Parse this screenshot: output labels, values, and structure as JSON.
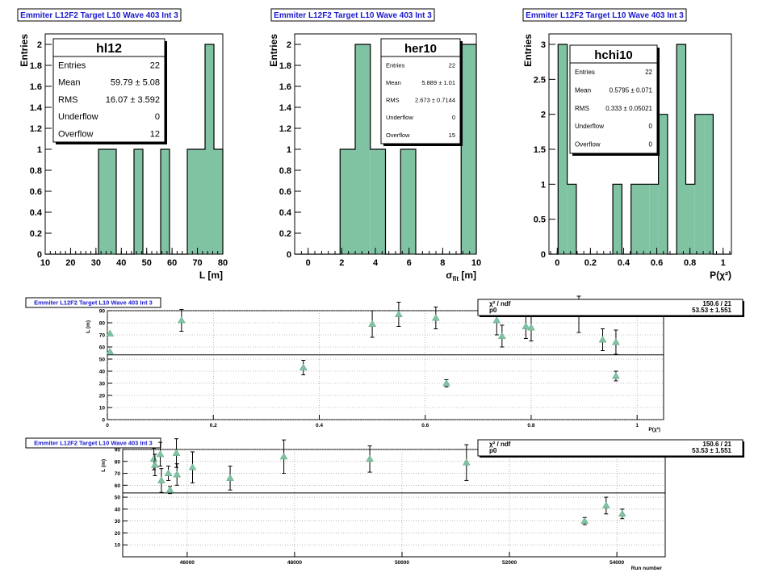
{
  "colors": {
    "fill": "#7fc3a3",
    "stroke": "#000000",
    "title": "#1a1ad0",
    "grid": "#888888",
    "marker": "#7fc3a3"
  },
  "chart_data": [
    {
      "type": "bar",
      "id": "h1",
      "title": "Emmiter L12F2 Target L10 Wave 403 Int 3",
      "xlabel": "L [m]",
      "ylabel": "Entries",
      "xlim": [
        10,
        80
      ],
      "ylim": [
        0,
        2.1
      ],
      "xticks": [
        "10",
        "20",
        "30",
        "40",
        "50",
        "60",
        "70",
        "80"
      ],
      "yticks": [
        "0",
        "0.2",
        "0.4",
        "0.6",
        "0.8",
        "1",
        "1.2",
        "1.4",
        "1.6",
        "1.8",
        "2"
      ],
      "bin_edges": [
        10,
        13.5,
        17,
        20.5,
        24,
        27.5,
        31,
        34.5,
        38,
        41.5,
        45,
        48.5,
        52,
        55.5,
        59,
        62.5,
        66,
        69.5,
        73,
        76.5,
        80
      ],
      "values": [
        0,
        0,
        0,
        0,
        0,
        0,
        1,
        1,
        0,
        0,
        1,
        0,
        0,
        1,
        0,
        0,
        1,
        1,
        2,
        1
      ],
      "stats": {
        "name": "hl12",
        "rows": [
          {
            "label": "Entries",
            "value": "22"
          },
          {
            "label": "Mean",
            "value": "59.79 ±  5.08"
          },
          {
            "label": "RMS",
            "value": "16.07 ±  3.592"
          },
          {
            "label": "Underflow",
            "value": "0"
          },
          {
            "label": "Overflow",
            "value": "12"
          }
        ]
      }
    },
    {
      "type": "bar",
      "id": "h2",
      "title": "Emmiter L12F2 Target L10 Wave 403 Int 3",
      "xlabel": "σfit [m]",
      "ylabel": "Entries",
      "xlim": [
        -0.8,
        10
      ],
      "ylim": [
        0,
        2.1
      ],
      "xticks": [
        "0",
        "2",
        "4",
        "6",
        "8",
        "10"
      ],
      "yticks": [
        "0",
        "0.2",
        "0.4",
        "0.6",
        "0.8",
        "1",
        "1.2",
        "1.4",
        "1.6",
        "1.8",
        "2"
      ],
      "bin_edges": [
        -0.8,
        0.1,
        1,
        1.9,
        2.8,
        3.7,
        4.6,
        5.5,
        6.4,
        7.3,
        8.2,
        9.1,
        10
      ],
      "values": [
        0,
        0,
        0,
        1,
        2,
        1,
        0,
        1,
        0,
        0,
        0,
        2
      ],
      "stats": {
        "name": "her10",
        "rows": [
          {
            "label": "Entries",
            "value": "22"
          },
          {
            "label": "Mean",
            "value": "5.889 ±  1.01"
          },
          {
            "label": "RMS",
            "value": "2.673 ± 0.7144"
          },
          {
            "label": "Underflow",
            "value": "0"
          },
          {
            "label": "Overflow",
            "value": "15"
          }
        ]
      }
    },
    {
      "type": "bar",
      "id": "h3",
      "title": "Emmiter L12F2 Target L10 Wave 403 Int 3",
      "xlabel": "P(χ²)",
      "ylabel": "Entries",
      "xlim": [
        -0.05,
        1.05
      ],
      "ylim": [
        0,
        3.15
      ],
      "xticks": [
        "0",
        "0.2",
        "0.4",
        "0.6",
        "0.8",
        "1"
      ],
      "yticks": [
        "0",
        "0.5",
        "1",
        "1.5",
        "2",
        "2.5",
        "3"
      ],
      "bin_edges": [
        -0.05,
        0.005,
        0.06,
        0.115,
        0.17,
        0.225,
        0.28,
        0.335,
        0.39,
        0.445,
        0.5,
        0.555,
        0.61,
        0.665,
        0.72,
        0.775,
        0.83,
        0.885,
        0.94,
        0.995,
        1.05
      ],
      "values": [
        0,
        3,
        1,
        0,
        0,
        0,
        0,
        1,
        0,
        1,
        1,
        1,
        2,
        0,
        3,
        1,
        2,
        2,
        0,
        0
      ],
      "stats": {
        "name": "hchi10",
        "rows": [
          {
            "label": "Entries",
            "value": "22"
          },
          {
            "label": "Mean",
            "value": "0.5795 ±  0.071"
          },
          {
            "label": "RMS",
            "value": "0.333 ± 0.05021"
          },
          {
            "label": "Underflow",
            "value": "0"
          },
          {
            "label": "Overflow",
            "value": "0"
          }
        ]
      }
    },
    {
      "type": "scatter",
      "id": "g1",
      "title": "Emmiter L12F2 Target L10 Wave 403 Int 3",
      "xlabel": "P(χ²)",
      "ylabel": "L (m)",
      "xlim": [
        0,
        1.05
      ],
      "ylim": [
        0,
        90
      ],
      "xticks": [
        "0",
        "0.2",
        "0.4",
        "0.6",
        "0.8",
        "1"
      ],
      "yticks": [
        "0",
        "10",
        "20",
        "30",
        "40",
        "50",
        "60",
        "70",
        "80",
        "90"
      ],
      "fit_value": 53.53,
      "fit_box": [
        {
          "label": "χ² / ndf",
          "value": "150.6 / 21"
        },
        {
          "label": "p0",
          "value": "53.53 ± 1.551"
        }
      ],
      "points": [
        {
          "x": 0.005,
          "y": 71,
          "err": 0
        },
        {
          "x": 0.005,
          "y": 56,
          "err": 0
        },
        {
          "x": 0.14,
          "y": 82,
          "err": 9
        },
        {
          "x": 0.37,
          "y": 43,
          "err": 6
        },
        {
          "x": 0.5,
          "y": 79,
          "err": 11
        },
        {
          "x": 0.55,
          "y": 87,
          "err": 10
        },
        {
          "x": 0.62,
          "y": 84,
          "err": 9
        },
        {
          "x": 0.64,
          "y": 30,
          "err": 3
        },
        {
          "x": 0.735,
          "y": 82,
          "err": 12
        },
        {
          "x": 0.745,
          "y": 69,
          "err": 9
        },
        {
          "x": 0.79,
          "y": 77,
          "err": 10
        },
        {
          "x": 0.8,
          "y": 76,
          "err": 11
        },
        {
          "x": 0.89,
          "y": 87,
          "err": 15
        },
        {
          "x": 0.935,
          "y": 66,
          "err": 9
        },
        {
          "x": 0.96,
          "y": 64,
          "err": 10
        },
        {
          "x": 0.96,
          "y": 36,
          "err": 4
        }
      ]
    },
    {
      "type": "scatter",
      "id": "g2",
      "title": "Emmiter L12F2 Target L10 Wave 403 Int 3",
      "xlabel": "Run number",
      "ylabel": "L (m)",
      "xlim": [
        44800,
        54900
      ],
      "ylim": [
        0,
        90
      ],
      "xticks": [
        "46000",
        "48000",
        "50000",
        "52000",
        "54000"
      ],
      "yticks": [
        "10",
        "20",
        "30",
        "40",
        "50",
        "60",
        "70",
        "80",
        "90"
      ],
      "fit_value": 53.53,
      "fit_box": [
        {
          "label": "χ² / ndf",
          "value": "150.6 / 21"
        },
        {
          "label": "p0",
          "value": "53.53 ± 1.551"
        }
      ],
      "points": [
        {
          "x": 45380,
          "y": 82,
          "err": 9
        },
        {
          "x": 45400,
          "y": 77,
          "err": 9
        },
        {
          "x": 45500,
          "y": 86,
          "err": 10
        },
        {
          "x": 45520,
          "y": 64,
          "err": 10
        },
        {
          "x": 45650,
          "y": 70,
          "err": 6
        },
        {
          "x": 45680,
          "y": 56,
          "err": 3
        },
        {
          "x": 45800,
          "y": 87,
          "err": 12
        },
        {
          "x": 45810,
          "y": 69,
          "err": 9
        },
        {
          "x": 46100,
          "y": 75,
          "err": 13
        },
        {
          "x": 46800,
          "y": 66,
          "err": 10
        },
        {
          "x": 47800,
          "y": 84,
          "err": 14
        },
        {
          "x": 49400,
          "y": 82,
          "err": 11
        },
        {
          "x": 51200,
          "y": 79,
          "err": 15
        },
        {
          "x": 53400,
          "y": 30,
          "err": 3
        },
        {
          "x": 53800,
          "y": 43,
          "err": 7
        },
        {
          "x": 54100,
          "y": 36,
          "err": 4
        }
      ]
    }
  ]
}
